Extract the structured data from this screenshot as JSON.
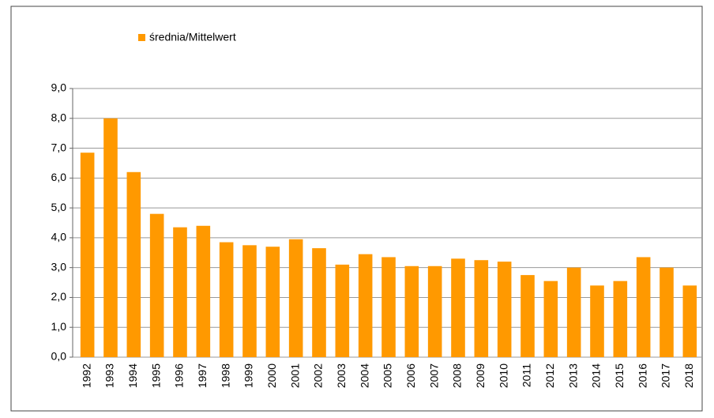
{
  "chart_data": {
    "type": "bar",
    "series": [
      {
        "name": "średnia/Mittelwert",
        "color": "#ff9900",
        "values": [
          6.85,
          8.0,
          6.2,
          4.8,
          4.35,
          4.4,
          3.85,
          3.75,
          3.7,
          3.95,
          3.65,
          3.1,
          3.45,
          3.35,
          3.05,
          3.05,
          3.3,
          3.25,
          3.2,
          2.75,
          2.55,
          3.0,
          2.4,
          2.55,
          3.35,
          3.0,
          2.4
        ]
      }
    ],
    "categories": [
      "1992",
      "1993",
      "1994",
      "1995",
      "1996",
      "1997",
      "1998",
      "1999",
      "2000",
      "2001",
      "2002",
      "2003",
      "2004",
      "2005",
      "2006",
      "2007",
      "2008",
      "2009",
      "2010",
      "2011",
      "2012",
      "2013",
      "2014",
      "2015",
      "2016",
      "2017",
      "2018"
    ],
    "ylim": [
      0,
      9
    ],
    "yticks": [
      {
        "value": 0,
        "label": "0,0"
      },
      {
        "value": 1,
        "label": "1,0"
      },
      {
        "value": 2,
        "label": "2,0"
      },
      {
        "value": 3,
        "label": "3,0"
      },
      {
        "value": 4,
        "label": "4,0"
      },
      {
        "value": 5,
        "label": "5,0"
      },
      {
        "value": 6,
        "label": "6,0"
      },
      {
        "value": 7,
        "label": "7,0"
      },
      {
        "value": 8,
        "label": "8,0"
      },
      {
        "value": 9,
        "label": "9,0"
      }
    ],
    "grid": true,
    "legend": "top-left"
  }
}
